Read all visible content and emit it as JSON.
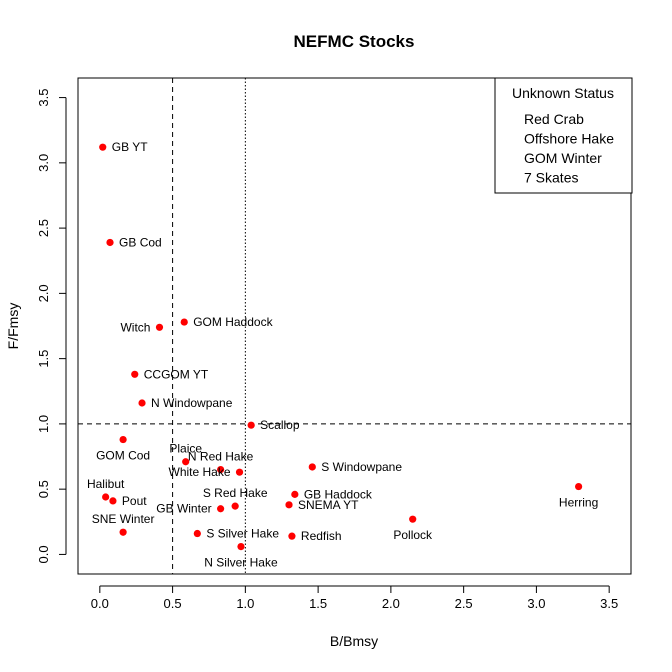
{
  "chart_data": {
    "type": "scatter",
    "title": "NEFMC Stocks",
    "xlabel": "B/Bmsy",
    "ylabel": "F/Fmsy",
    "xlim": [
      -0.15,
      3.65
    ],
    "ylim": [
      -0.15,
      3.65
    ],
    "xticks": [
      "0.0",
      "0.5",
      "1.0",
      "1.5",
      "2.0",
      "2.5",
      "3.0",
      "3.5"
    ],
    "yticks": [
      "0.0",
      "0.5",
      "1.0",
      "1.5",
      "2.0",
      "2.5",
      "3.0",
      "3.5"
    ],
    "xtick_values": [
      0,
      0.5,
      1.0,
      1.5,
      2.0,
      2.5,
      3.0,
      3.5
    ],
    "ytick_values": [
      0,
      0.5,
      1.0,
      1.5,
      2.0,
      2.5,
      3.0,
      3.5
    ],
    "point_color": "#ff0000",
    "reference_lines": [
      {
        "axis": "x",
        "value": 0.5,
        "style": "dashed"
      },
      {
        "axis": "x",
        "value": 1.0,
        "style": "dotted"
      },
      {
        "axis": "y",
        "value": 1.0,
        "style": "dashed"
      }
    ],
    "points": [
      {
        "label": "GB YT",
        "x": 0.02,
        "y": 3.12,
        "anchor": "right"
      },
      {
        "label": "GB Cod",
        "x": 0.07,
        "y": 2.39,
        "anchor": "right"
      },
      {
        "label": "GOM Haddock",
        "x": 0.58,
        "y": 1.78,
        "anchor": "right"
      },
      {
        "label": "Witch",
        "x": 0.41,
        "y": 1.74,
        "anchor": "left"
      },
      {
        "label": "CCGOM YT",
        "x": 0.24,
        "y": 1.38,
        "anchor": "right"
      },
      {
        "label": "N Windowpane",
        "x": 0.29,
        "y": 1.16,
        "anchor": "right"
      },
      {
        "label": "Scallop",
        "x": 1.04,
        "y": 0.99,
        "anchor": "right"
      },
      {
        "label": "GOM Cod",
        "x": 0.16,
        "y": 0.88,
        "anchor": "below"
      },
      {
        "label": "Plaice",
        "x": 0.59,
        "y": 0.71,
        "anchor": "above"
      },
      {
        "label": "N Red Hake",
        "x": 0.83,
        "y": 0.65,
        "anchor": "above"
      },
      {
        "label": "White Hake",
        "x": 0.96,
        "y": 0.63,
        "anchor": "left"
      },
      {
        "label": "S Windowpane",
        "x": 1.46,
        "y": 0.67,
        "anchor": "right"
      },
      {
        "label": "Halibut",
        "x": 0.04,
        "y": 0.44,
        "anchor": "above"
      },
      {
        "label": "Pout",
        "x": 0.09,
        "y": 0.41,
        "anchor": "right"
      },
      {
        "label": "S Red Hake",
        "x": 0.93,
        "y": 0.37,
        "anchor": "above"
      },
      {
        "label": "GB Winter",
        "x": 0.83,
        "y": 0.35,
        "anchor": "left"
      },
      {
        "label": "GB Haddock",
        "x": 1.34,
        "y": 0.46,
        "anchor": "right"
      },
      {
        "label": "SNEMA YT",
        "x": 1.3,
        "y": 0.38,
        "anchor": "right"
      },
      {
        "label": "SNE Winter",
        "x": 0.16,
        "y": 0.17,
        "anchor": "above"
      },
      {
        "label": "S Silver Hake",
        "x": 0.67,
        "y": 0.16,
        "anchor": "right"
      },
      {
        "label": "N Silver Hake",
        "x": 0.97,
        "y": 0.06,
        "anchor": "below"
      },
      {
        "label": "Redfish",
        "x": 1.32,
        "y": 0.14,
        "anchor": "right"
      },
      {
        "label": "Pollock",
        "x": 2.15,
        "y": 0.27,
        "anchor": "below"
      },
      {
        "label": "Herring",
        "x": 3.29,
        "y": 0.52,
        "anchor": "below"
      }
    ],
    "legend": {
      "position": "top-right",
      "title": "Unknown Status",
      "entries": [
        "Red Crab",
        "Offshore Hake",
        "GOM Winter",
        "7 Skates"
      ]
    }
  }
}
